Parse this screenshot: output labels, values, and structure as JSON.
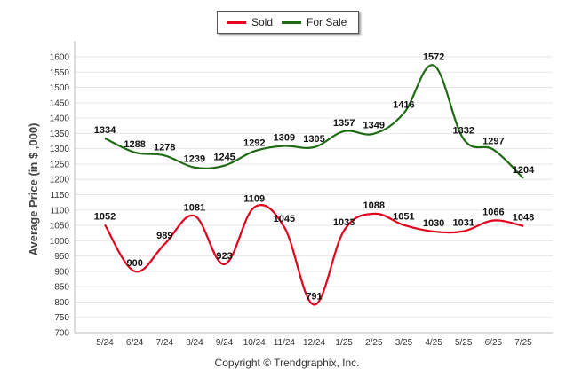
{
  "chart_data": {
    "type": "line",
    "categories": [
      "5/24",
      "6/24",
      "7/24",
      "8/24",
      "9/24",
      "10/24",
      "11/24",
      "12/24",
      "1/25",
      "2/25",
      "3/25",
      "4/25",
      "5/25",
      "6/25",
      "7/25"
    ],
    "series": [
      {
        "name": "Sold",
        "color": "#e3001b",
        "values": [
          1052,
          900,
          989,
          1081,
          923,
          1109,
          1045,
          791,
          1033,
          1088,
          1051,
          1030,
          1031,
          1066,
          1048
        ]
      },
      {
        "name": "For Sale",
        "color": "#1e6b14",
        "values": [
          1334,
          1288,
          1278,
          1239,
          1245,
          1292,
          1309,
          1305,
          1357,
          1349,
          1416,
          1572,
          1332,
          1297,
          1204
        ]
      }
    ],
    "ylabel": "Average Price (in $ ,000)",
    "xlabel": "",
    "ylim": [
      700,
      1600
    ],
    "yticks": [
      700,
      750,
      800,
      850,
      900,
      950,
      1000,
      1050,
      1100,
      1150,
      1200,
      1250,
      1300,
      1350,
      1400,
      1450,
      1500,
      1550,
      1600
    ],
    "grid": true,
    "legend_position": "top-center"
  },
  "legend": {
    "sold_label": "Sold",
    "for_sale_label": "For Sale"
  },
  "footer": {
    "copyright": "Copyright © Trendgraphix, Inc."
  }
}
